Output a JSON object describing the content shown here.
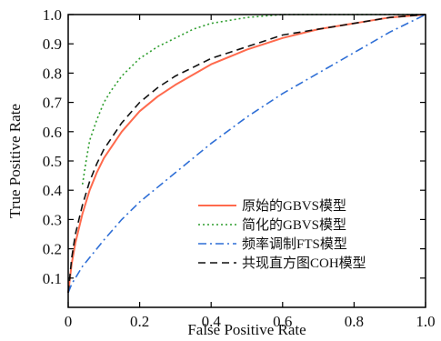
{
  "chart_data": {
    "type": "line",
    "xlabel": "False Positive Rate",
    "ylabel": "True Positive Rate",
    "xlim": [
      0,
      1.0
    ],
    "ylim": [
      0,
      1.0
    ],
    "x_ticks": [
      "0",
      "0.2",
      "0.4",
      "0.6",
      "0.8",
      "1.0"
    ],
    "y_ticks": [
      "0.1",
      "0.2",
      "0.3",
      "0.4",
      "0.5",
      "0.6",
      "0.7",
      "0.8",
      "0.9",
      "1.0"
    ],
    "grid": false,
    "legend_position": "bottom-right",
    "series": [
      {
        "name": "原始的GBVS模型",
        "color": "#ff6a4d",
        "dash": "solid",
        "x": [
          0,
          0.01,
          0.02,
          0.04,
          0.06,
          0.08,
          0.1,
          0.15,
          0.2,
          0.25,
          0.3,
          0.4,
          0.5,
          0.6,
          0.7,
          0.8,
          0.9,
          1.0
        ],
        "y": [
          0.05,
          0.15,
          0.22,
          0.32,
          0.4,
          0.46,
          0.51,
          0.6,
          0.67,
          0.72,
          0.76,
          0.83,
          0.88,
          0.92,
          0.95,
          0.97,
          0.99,
          1.0
        ]
      },
      {
        "name": "简化的GBVS模型",
        "color": "#2e9e2e",
        "dash": "dotted",
        "x": [
          0.04,
          0.05,
          0.06,
          0.08,
          0.1,
          0.12,
          0.15,
          0.2,
          0.25,
          0.3,
          0.35,
          0.4,
          0.5,
          0.6,
          0.7,
          0.8,
          1.0
        ],
        "y": [
          0.42,
          0.5,
          0.57,
          0.64,
          0.7,
          0.74,
          0.79,
          0.85,
          0.89,
          0.92,
          0.95,
          0.97,
          0.99,
          1.0,
          1.0,
          1.0,
          1.0
        ]
      },
      {
        "name": "频率调制FTS模型",
        "color": "#2f6fd6",
        "dash": "dashdot",
        "x": [
          0,
          0.01,
          0.02,
          0.04,
          0.06,
          0.1,
          0.15,
          0.2,
          0.3,
          0.4,
          0.5,
          0.6,
          0.7,
          0.8,
          0.9,
          1.0
        ],
        "y": [
          0.05,
          0.08,
          0.1,
          0.14,
          0.17,
          0.23,
          0.3,
          0.36,
          0.46,
          0.56,
          0.65,
          0.73,
          0.8,
          0.87,
          0.94,
          1.0
        ]
      },
      {
        "name": "共现直方图COH模型",
        "color": "#111111",
        "dash": "dashed",
        "x": [
          0,
          0.01,
          0.02,
          0.04,
          0.06,
          0.08,
          0.1,
          0.15,
          0.2,
          0.25,
          0.3,
          0.4,
          0.5,
          0.6,
          0.7,
          0.8,
          0.9,
          1.0
        ],
        "y": [
          0.05,
          0.17,
          0.25,
          0.35,
          0.43,
          0.49,
          0.54,
          0.63,
          0.7,
          0.75,
          0.79,
          0.85,
          0.89,
          0.93,
          0.95,
          0.97,
          0.99,
          1.0
        ]
      }
    ]
  }
}
